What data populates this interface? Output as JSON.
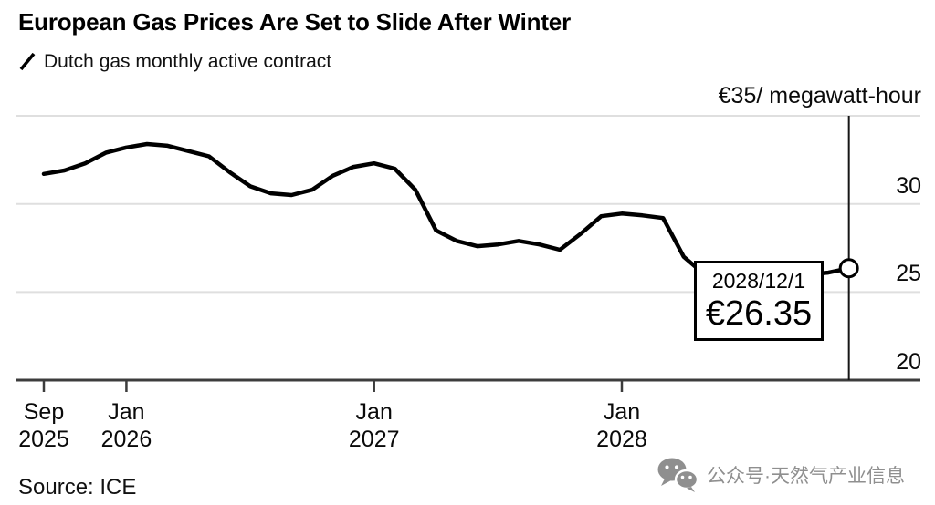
{
  "header": {
    "title": "European Gas Prices Are Set to Slide After Winter",
    "legend_label": "Dutch gas monthly active contract"
  },
  "chart_data": {
    "type": "line",
    "title": "European Gas Prices Are Set to Slide After Winter",
    "unit": "€/megawatt-hour",
    "grid": "horizontal-light",
    "legend_position": "top-left",
    "ylim": [
      20,
      35
    ],
    "yticks": [
      {
        "value": 35,
        "label": "€35/ megawatt-hour"
      },
      {
        "value": 30,
        "label": "30"
      },
      {
        "value": 25,
        "label": "25"
      },
      {
        "value": 20,
        "label": "20"
      }
    ],
    "xticks": [
      {
        "month_index": 0,
        "line1": "Sep",
        "line2": "2025"
      },
      {
        "month_index": 4,
        "line1": "Jan",
        "line2": "2026"
      },
      {
        "month_index": 16,
        "line1": "Jan",
        "line2": "2027"
      },
      {
        "month_index": 28,
        "line1": "Jan",
        "line2": "2028"
      }
    ],
    "series": [
      {
        "name": "Dutch gas monthly active contract",
        "color": "#000000",
        "x": [
          "2025-09",
          "2025-10",
          "2025-11",
          "2025-12",
          "2026-01",
          "2026-02",
          "2026-03",
          "2026-04",
          "2026-05",
          "2026-06",
          "2026-07",
          "2026-08",
          "2026-09",
          "2026-10",
          "2026-11",
          "2026-12",
          "2027-01",
          "2027-02",
          "2027-03",
          "2027-04",
          "2027-05",
          "2027-06",
          "2027-07",
          "2027-08",
          "2027-09",
          "2027-10",
          "2027-11",
          "2027-12",
          "2028-01",
          "2028-02",
          "2028-03",
          "2028-04",
          "2028-05",
          "2028-06",
          "2028-07",
          "2028-08",
          "2028-09",
          "2028-10",
          "2028-11",
          "2028-12"
        ],
        "values": [
          31.7,
          31.9,
          32.3,
          32.9,
          33.2,
          33.4,
          33.3,
          33.0,
          32.7,
          31.8,
          31.0,
          30.6,
          30.5,
          30.8,
          31.6,
          32.1,
          32.3,
          32.0,
          30.8,
          28.5,
          27.9,
          27.6,
          27.7,
          27.9,
          27.7,
          27.4,
          28.3,
          29.3,
          29.45,
          29.35,
          29.2,
          27.0,
          26.0,
          25.8,
          25.8,
          25.8,
          25.9,
          26.0,
          26.1,
          26.35
        ]
      }
    ],
    "annotation": {
      "date": "2028/12/1",
      "price_label": "€26.35",
      "value": 26.35,
      "x": "2028-12"
    },
    "end_marker": {
      "x": "2028-12",
      "value": 26.35,
      "style": "open-circle"
    },
    "colors": {
      "line": "#000000",
      "gridline": "#dfdfdf",
      "axis": "#3c3c3c",
      "marker_line": "#151515"
    }
  },
  "footer": {
    "source": "Source: ICE"
  },
  "watermark": {
    "icon": "wechat-icon",
    "text": "公众号·天然气产业信息",
    "color": "#8f8f8f"
  }
}
